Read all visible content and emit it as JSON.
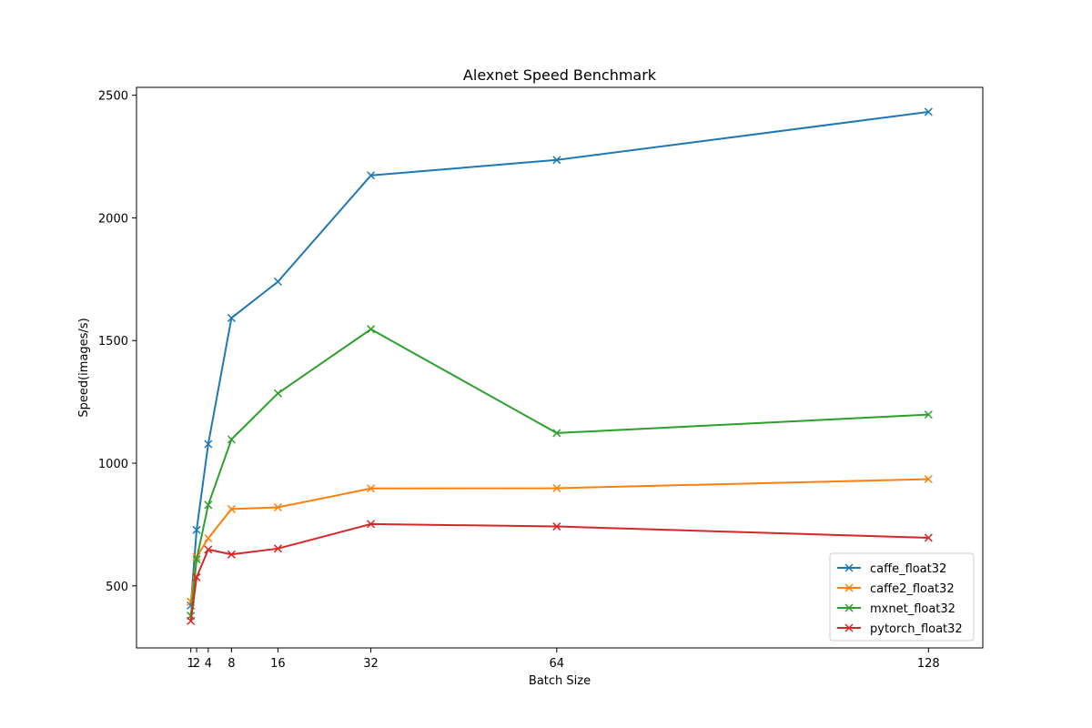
{
  "chart_data": {
    "type": "line",
    "title": "Alexnet Speed Benchmark",
    "xlabel": "Batch Size",
    "ylabel": "Speed(images/s)",
    "x": [
      1,
      2,
      4,
      8,
      16,
      32,
      64,
      128
    ],
    "xticks": [
      1,
      2,
      4,
      8,
      16,
      32,
      64,
      128
    ],
    "yticks": [
      500,
      1000,
      1500,
      2000,
      2500
    ],
    "xlim": [
      -8.35,
      137.35
    ],
    "ylim": [
      247,
      2532
    ],
    "legend_position": "lower-right",
    "grid": false,
    "series": [
      {
        "name": "caffe_float32",
        "color": "#1f77b4",
        "values": [
          420,
          728,
          1078,
          1592,
          1740,
          2173,
          2236,
          2432
        ]
      },
      {
        "name": "caffe2_float32",
        "color": "#ff7f0e",
        "values": [
          435,
          618,
          694,
          813,
          820,
          897,
          898,
          935
        ]
      },
      {
        "name": "mxnet_float32",
        "color": "#2ca02c",
        "values": [
          378,
          608,
          830,
          1097,
          1285,
          1546,
          1123,
          1198
        ]
      },
      {
        "name": "pytorch_float32",
        "color": "#d62728",
        "values": [
          357,
          535,
          648,
          628,
          652,
          752,
          742,
          696
        ]
      }
    ]
  }
}
